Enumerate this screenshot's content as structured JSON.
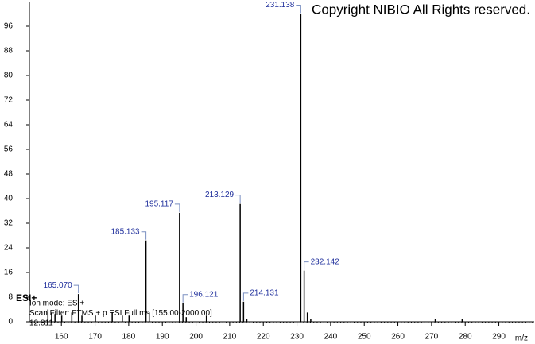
{
  "chart_data": {
    "type": "spectrum",
    "title": "Copyright NIBIO All Rights reserved.",
    "mode_badge": "ESI+",
    "info_lines": [
      "Ion mode: ESI+",
      "Scan Filter: FTMS + p ESI Full ms [155.00-2000.00]",
      "12.811"
    ],
    "x_label": "m/z",
    "x": [
      156.0,
      157.1,
      158.1,
      160.1,
      163.1,
      165.07,
      166.1,
      170.1,
      175.1,
      178.1,
      180.1,
      185.133,
      186.1,
      195.117,
      196.121,
      197.1,
      203.1,
      213.129,
      214.131,
      215.1,
      231.138,
      232.142,
      233.1,
      234.1,
      271.1,
      279.1
    ],
    "values": [
      4,
      3,
      2.5,
      2,
      3,
      9,
      2,
      2,
      3,
      2,
      2,
      26.4,
      3,
      35.4,
      6,
      1.5,
      2,
      38.3,
      6.5,
      1,
      100,
      16.6,
      3,
      1,
      1,
      1
    ],
    "x_labels": [
      null,
      null,
      null,
      null,
      null,
      "165.070",
      null,
      null,
      null,
      null,
      null,
      "185.133",
      null,
      "195.117",
      "196.121",
      null,
      null,
      "213.129",
      "214.131",
      null,
      "231.138",
      "232.142",
      null,
      null,
      null,
      null
    ],
    "color": "#000000",
    "label_color": "#1f2f9c",
    "xlim": [
      150.5,
      300.5
    ],
    "xticks": [
      160,
      170,
      180,
      190,
      200,
      210,
      220,
      230,
      240,
      250,
      260,
      270,
      280,
      290
    ],
    "ylim": [
      0,
      104
    ],
    "yticks": [
      0,
      8,
      16,
      24,
      32,
      40,
      48,
      56,
      64,
      72,
      80,
      88,
      96
    ]
  }
}
